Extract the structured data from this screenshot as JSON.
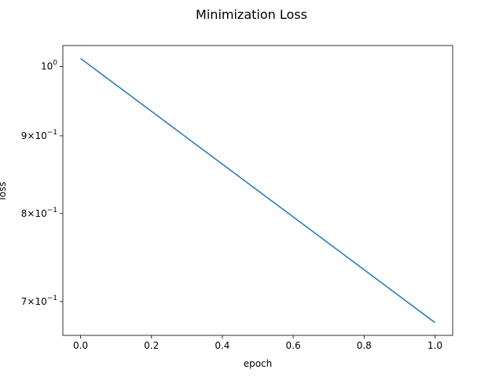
{
  "chart_data": {
    "type": "line",
    "title": "Minimization Loss",
    "xlabel": "epoch",
    "ylabel": "loss",
    "yscale": "log",
    "grid": false,
    "xlim": [
      -0.05,
      1.05
    ],
    "ylim": [
      0.665,
      1.032
    ],
    "x_ticks": [
      0.0,
      0.2,
      0.4,
      0.6,
      0.8,
      1.0
    ],
    "x_tick_labels": [
      "0.0",
      "0.2",
      "0.4",
      "0.6",
      "0.8",
      "1.0"
    ],
    "y_ticks": [
      {
        "value": 1.0,
        "mantissa": "",
        "exponent": "0"
      },
      {
        "value": 0.9,
        "mantissa": "9",
        "exponent": "−1"
      },
      {
        "value": 0.8,
        "mantissa": "8",
        "exponent": "−1"
      },
      {
        "value": 0.7,
        "mantissa": "7",
        "exponent": "−1"
      }
    ],
    "series": [
      {
        "x": [
          0.0,
          1.0
        ],
        "y": [
          1.012,
          0.678
        ],
        "color": "#1f77b4"
      }
    ]
  }
}
